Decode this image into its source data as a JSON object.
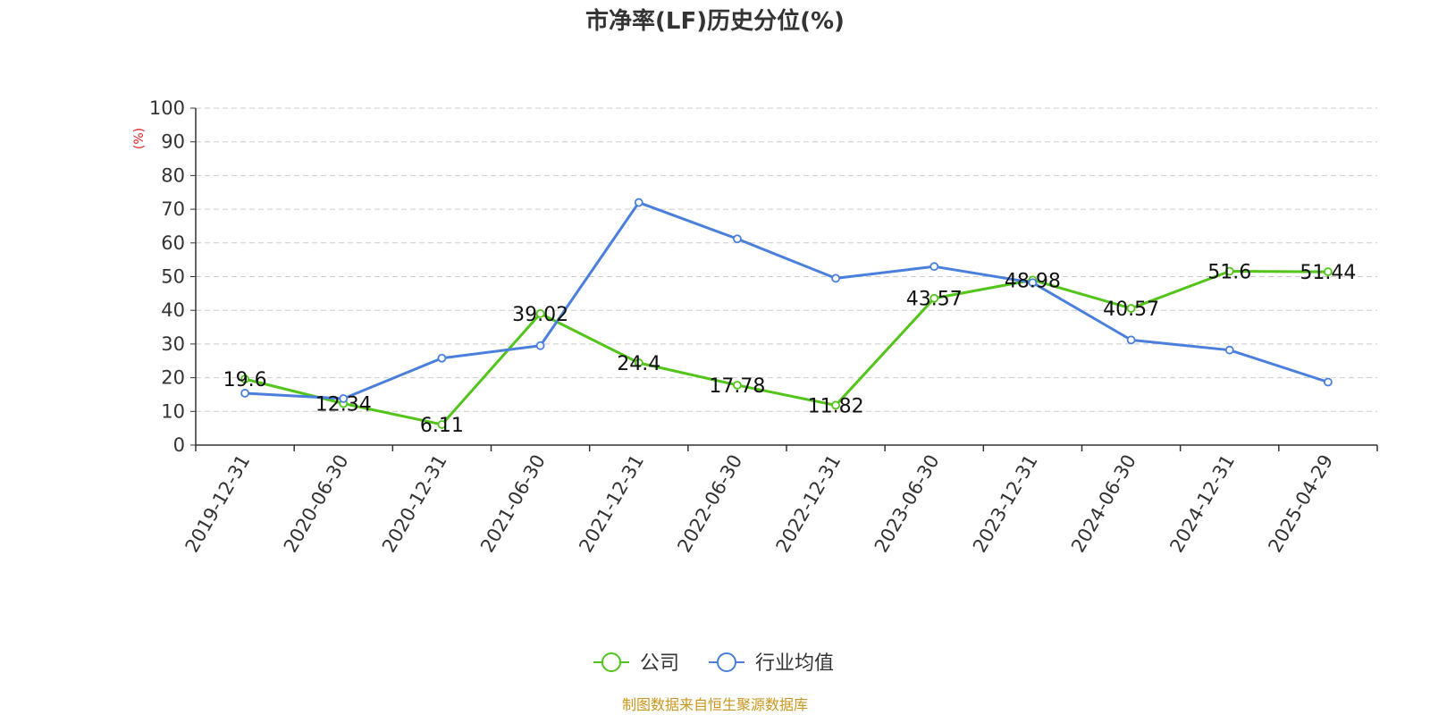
{
  "chart_data": {
    "type": "line",
    "title": "市净率(LF)历史分位(%)",
    "ylabel": "(%)",
    "ylim": [
      0,
      100
    ],
    "y_ticks": [
      0,
      10,
      20,
      30,
      40,
      50,
      60,
      70,
      80,
      90,
      100
    ],
    "grid": true,
    "legend_position": "bottom",
    "categories": [
      "2019-12-31",
      "2020-06-30",
      "2020-12-31",
      "2021-06-30",
      "2021-12-31",
      "2022-06-30",
      "2022-12-31",
      "2023-06-30",
      "2023-12-31",
      "2024-06-30",
      "2024-12-31",
      "2025-04-29"
    ],
    "series": [
      {
        "name": "公司",
        "color": "#52c41a",
        "values": [
          19.6,
          12.34,
          6.11,
          39.02,
          24.4,
          17.78,
          11.82,
          43.57,
          48.98,
          40.57,
          51.6,
          51.44
        ],
        "labels": [
          "19.6",
          "12.34",
          "6.11",
          "39.02",
          "24.4",
          "17.78",
          "11.82",
          "43.57",
          "48.98",
          "40.57",
          "51.6",
          "51.44"
        ]
      },
      {
        "name": "行业均值",
        "color": "#4a7fdc",
        "values": [
          15.4,
          13.8,
          25.8,
          29.5,
          72.0,
          61.2,
          49.5,
          53.0,
          48.2,
          31.2,
          28.2,
          18.7
        ]
      }
    ]
  },
  "footer": {
    "source": "制图数据来自恒生聚源数据库",
    "color": "#c8961e"
  }
}
